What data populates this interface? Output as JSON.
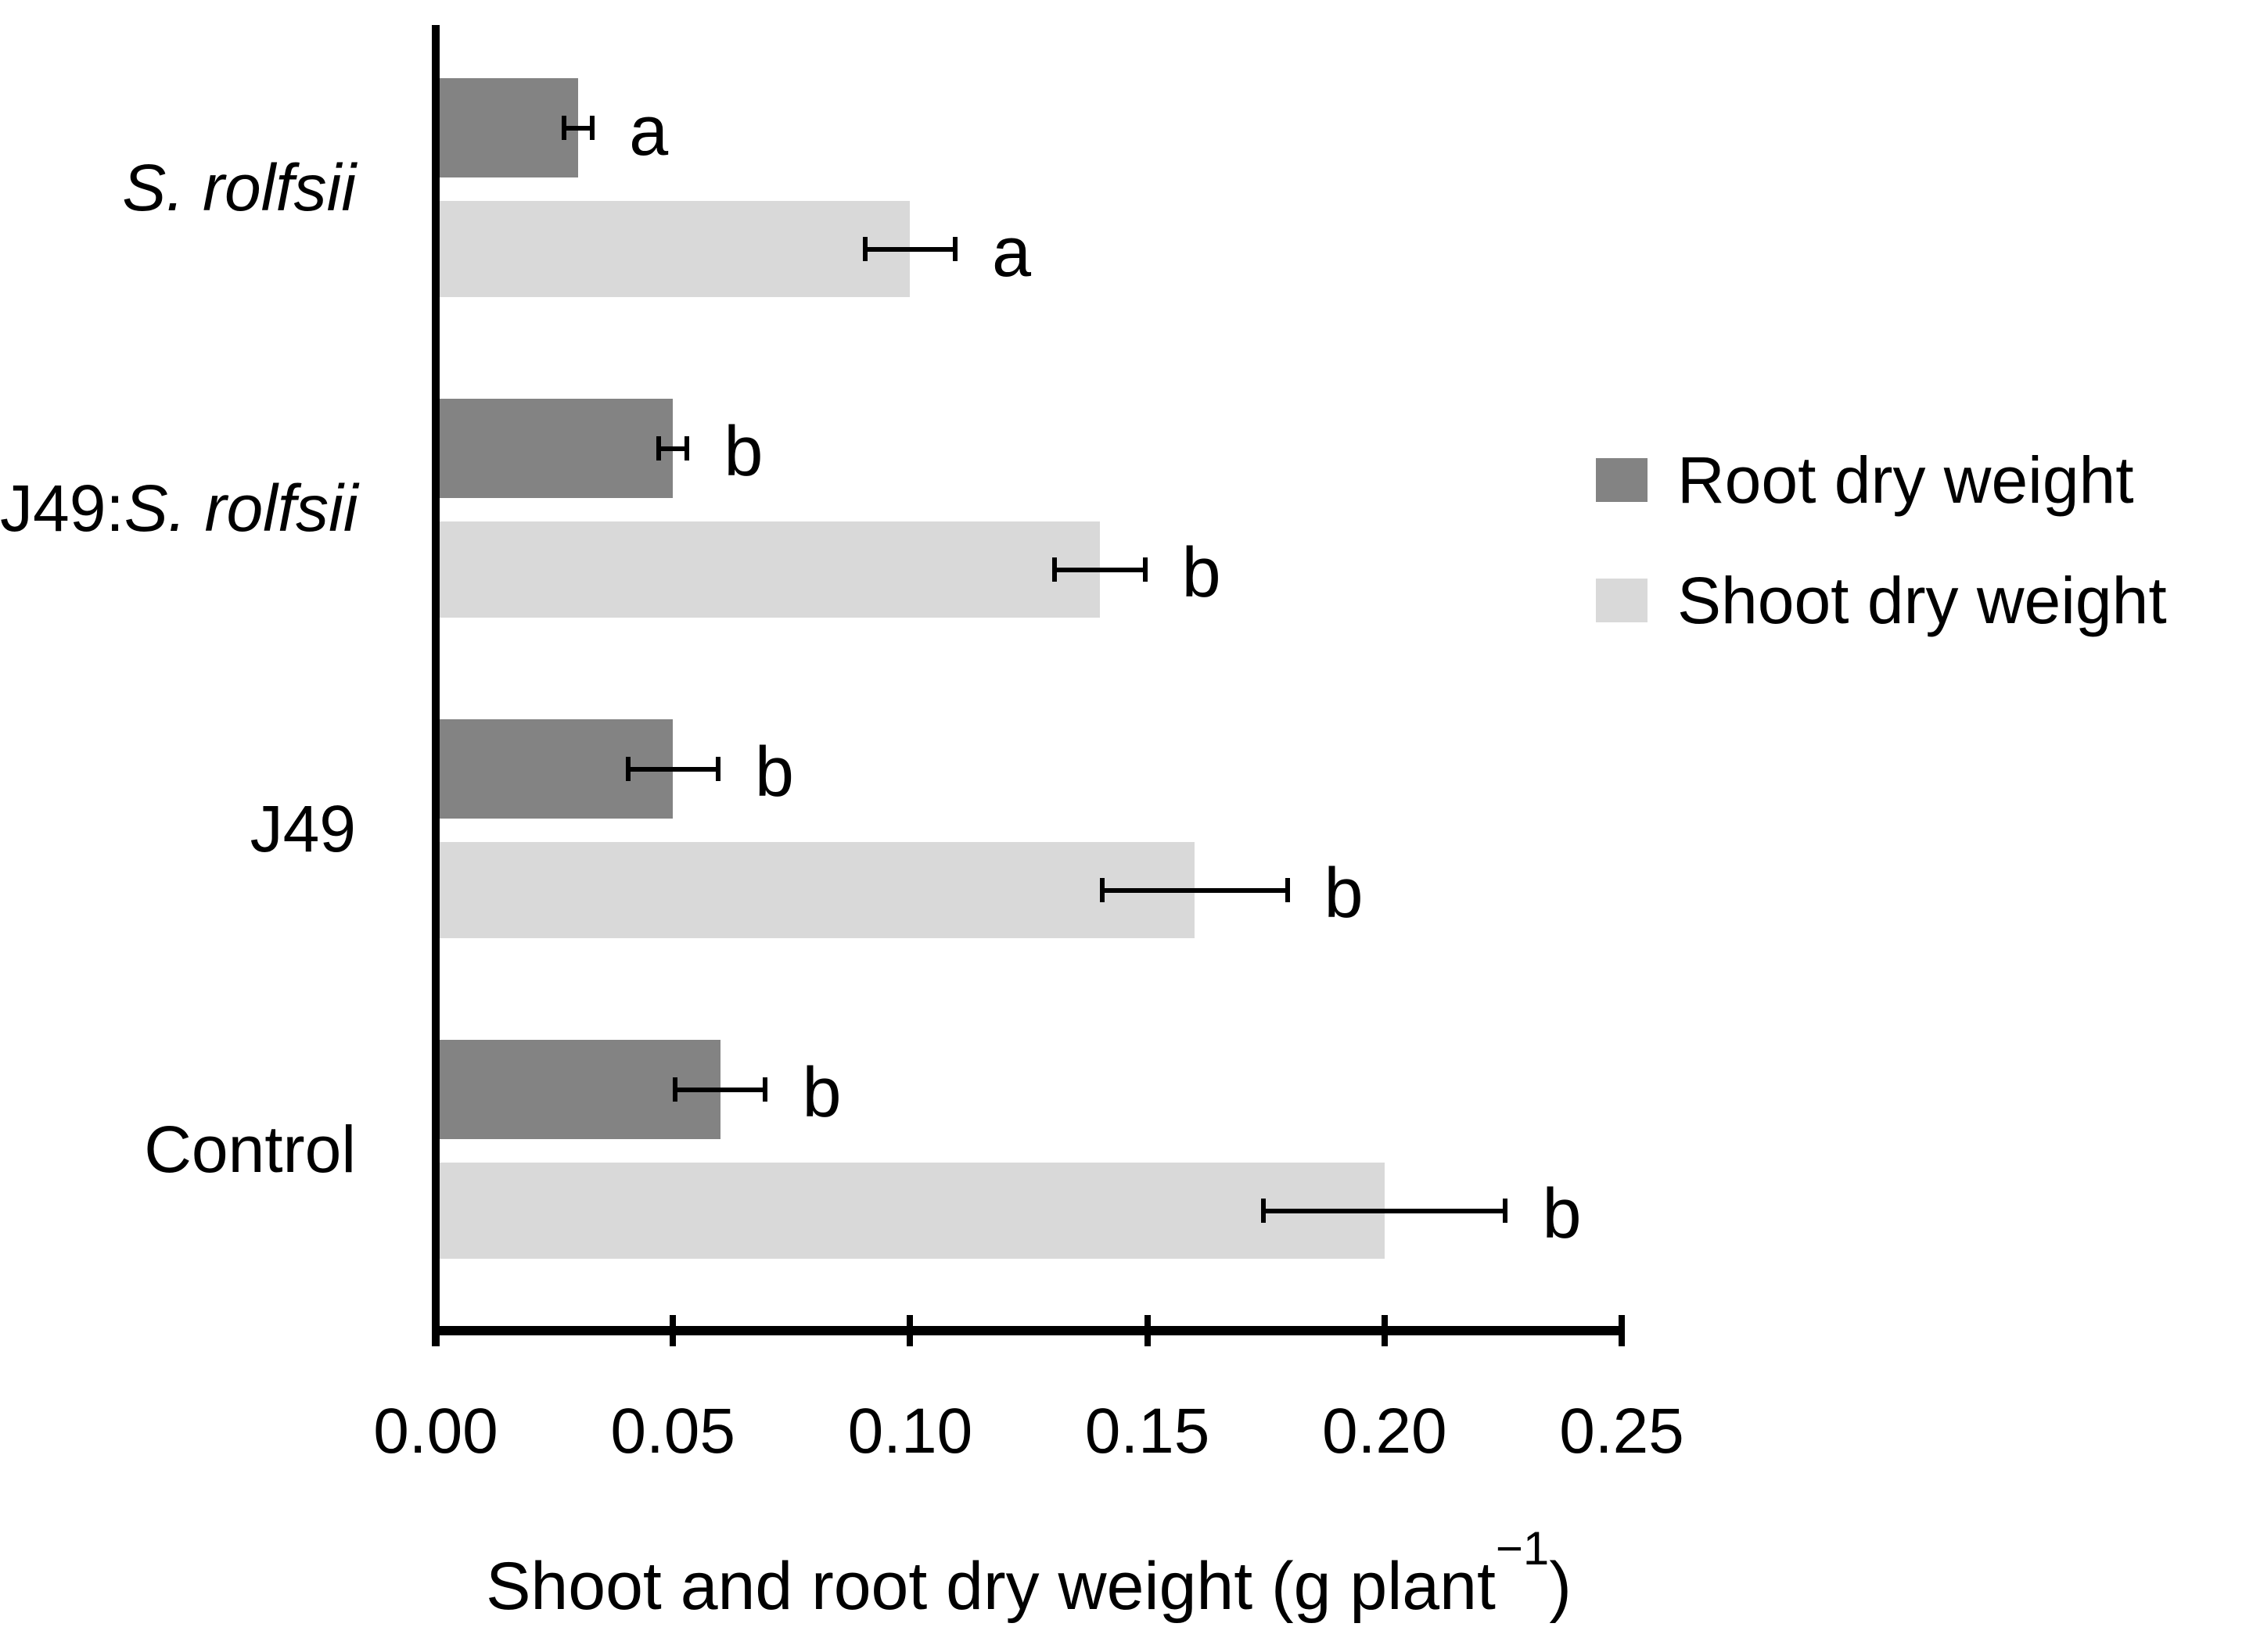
{
  "figure": {
    "background_color": "#ffffff",
    "axis_color": "#000000"
  },
  "chart_data": {
    "type": "bar",
    "orientation": "horizontal",
    "title": "",
    "xlabel": "Shoot and root dry weight (g plant−1)",
    "xlabel_parts": {
      "main": "Shoot and root dry weight (g plant",
      "superscript": "−1",
      "close": ")"
    },
    "ylabel": "",
    "xlim": [
      0,
      0.25
    ],
    "x_ticks": [
      0.0,
      0.05,
      0.1,
      0.15,
      0.2,
      0.25
    ],
    "x_tick_labels": [
      "0.00",
      "0.05",
      "0.10",
      "0.15",
      "0.20",
      "0.25"
    ],
    "grid": false,
    "categories": [
      "S. rolfsii",
      "J49:S. rolfsii",
      "J49",
      "Control"
    ],
    "category_label_parts": [
      [
        {
          "text": "S. rolfsii",
          "italic": true
        }
      ],
      [
        {
          "text": "J49:",
          "italic": false
        },
        {
          "text": "S. rolfsii",
          "italic": true
        }
      ],
      [
        {
          "text": "J49",
          "italic": false
        }
      ],
      [
        {
          "text": "Control",
          "italic": false
        }
      ]
    ],
    "series": [
      {
        "name": "Root dry weight",
        "color": "#838383",
        "values": [
          0.03,
          0.05,
          0.05,
          0.06
        ],
        "errors": [
          0.0035,
          0.0035,
          0.01,
          0.01
        ],
        "sig_letters": [
          "a",
          "b",
          "b",
          "b"
        ]
      },
      {
        "name": "Shoot dry weight",
        "color": "#d9d9d9",
        "values": [
          0.1,
          0.14,
          0.16,
          0.2
        ],
        "errors": [
          0.01,
          0.01,
          0.02,
          0.026
        ],
        "sig_letters": [
          "a",
          "b",
          "b",
          "b"
        ]
      }
    ],
    "legend": {
      "position": "right",
      "entries": [
        "Root dry weight",
        "Shoot dry weight"
      ]
    }
  }
}
